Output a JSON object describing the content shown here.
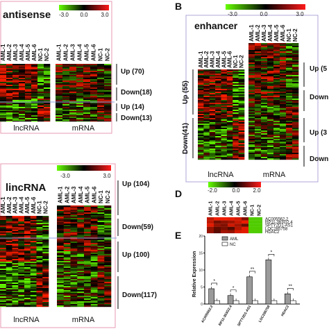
{
  "columns": [
    "AML-1",
    "AML-2",
    "AML-3",
    "AML-4",
    "AML-5",
    "AML-6",
    "NC-1",
    "NC-2"
  ],
  "panel_a": {
    "title": "antisense",
    "scale": [
      "-3.0",
      "0.0",
      "3.0"
    ],
    "groups": [
      "Up (70)",
      "Down(18)",
      "Up (14)",
      "Down(13)"
    ],
    "footer": [
      "lncRNA",
      "mRNA"
    ]
  },
  "panel_b": {
    "letter": "B",
    "title": "enhancer",
    "scale": [
      "-3.0",
      "0.0",
      "3.0"
    ],
    "left_groups": [
      "Up (55)",
      "Down(41)"
    ],
    "right_groups": [
      "Up (5",
      "Down",
      "Up (3",
      "Down"
    ],
    "footer": [
      "lncRNA",
      "mRNA"
    ]
  },
  "panel_c": {
    "title": "lincRNA",
    "scale": [
      "-3.0",
      "3.0"
    ],
    "groups": [
      "Up (104)",
      "Down(59)",
      "Up (100)",
      "Down(117)"
    ],
    "footer": [
      "lncRNA",
      "mRNA"
    ]
  },
  "panel_d": {
    "letter": "D",
    "scale": [
      "-2.0",
      "0.0",
      "2.0"
    ],
    "rows": [
      "AC005562.2",
      "RP11-363G2.4",
      "SPTY2D1-AS1",
      "LOC285758",
      "HDAC2"
    ]
  },
  "chart_data": {
    "type": "bar",
    "letter": "E",
    "y_label": "Relative Expression",
    "categories": [
      "AC005562.2",
      "RP11-363G2.4",
      "SPTY2D1-AS1",
      "LOC285758",
      "HDAC2"
    ],
    "series": [
      {
        "name": "AML",
        "color": "#9a9a9a",
        "values": [
          4.5,
          2.5,
          8,
          13,
          3
        ]
      },
      {
        "name": "NC",
        "color": "#ffffff",
        "values": [
          1,
          1,
          1,
          1,
          1
        ]
      }
    ],
    "significance": [
      "*",
      "*",
      "**",
      "*",
      "**"
    ],
    "ylim": [
      0,
      20
    ],
    "yticks": [
      0,
      5,
      10,
      15,
      20
    ]
  }
}
